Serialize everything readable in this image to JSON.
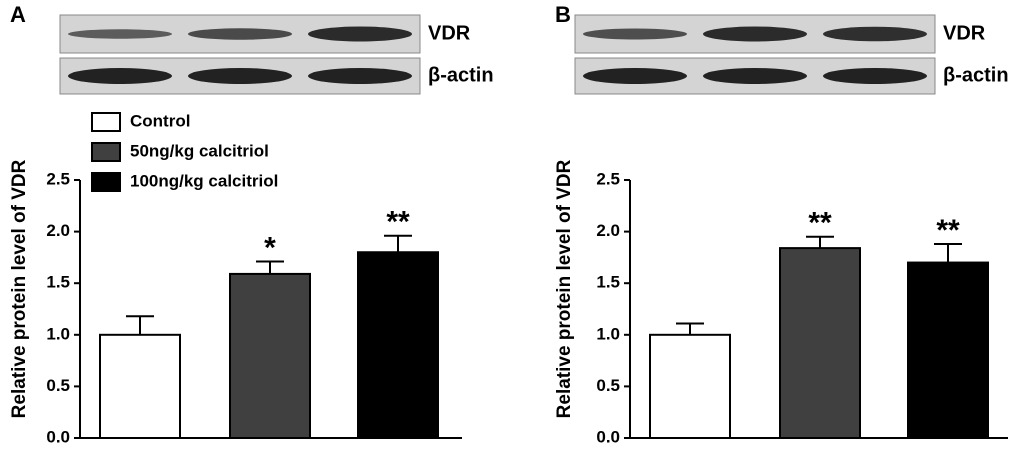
{
  "chart_data": [
    {
      "type": "bar",
      "panel": "A",
      "blot_labels": [
        "VDR",
        "β-actin"
      ],
      "ylabel": "Relative protein level of VDR",
      "ylim": [
        0,
        2.5
      ],
      "yticks": [
        {
          "value": 0,
          "label": "0.0"
        },
        0.5,
        {
          "value": 1,
          "label": "1.0"
        },
        1.5,
        {
          "value": 2,
          "label": "2.0"
        },
        2.5
      ],
      "series": [
        {
          "name": "Control",
          "color": "#ffffff",
          "values": [
            1.0
          ],
          "errors": [
            0.18
          ],
          "significance": [
            null
          ]
        },
        {
          "name": "50ng/kg calcitriol",
          "color": "#404040",
          "values": [
            1.59
          ],
          "errors": [
            0.12
          ],
          "significance": [
            "*"
          ]
        },
        {
          "name": "100ng/kg calcitriol",
          "color": "#000000",
          "values": [
            1.8
          ],
          "errors": [
            0.16
          ],
          "significance": [
            "**"
          ]
        }
      ]
    },
    {
      "type": "bar",
      "panel": "B",
      "blot_labels": [
        "VDR",
        "β-actin"
      ],
      "ylabel": "Relative protein level of VDR",
      "ylim": [
        0,
        2.5
      ],
      "yticks": [
        {
          "value": 0,
          "label": "0.0"
        },
        0.5,
        {
          "value": 1,
          "label": "1.0"
        },
        1.5,
        {
          "value": 2,
          "label": "2.0"
        },
        2.5
      ],
      "series": [
        {
          "color": "#ffffff",
          "values": [
            1.0
          ],
          "errors": [
            0.11
          ],
          "significance": [
            null
          ]
        },
        {
          "color": "#404040",
          "values": [
            1.84
          ],
          "errors": [
            0.11
          ],
          "significance": [
            "**"
          ]
        },
        {
          "color": "#000000",
          "values": [
            1.7
          ],
          "errors": [
            0.18
          ],
          "significance": [
            "**"
          ]
        }
      ]
    }
  ]
}
